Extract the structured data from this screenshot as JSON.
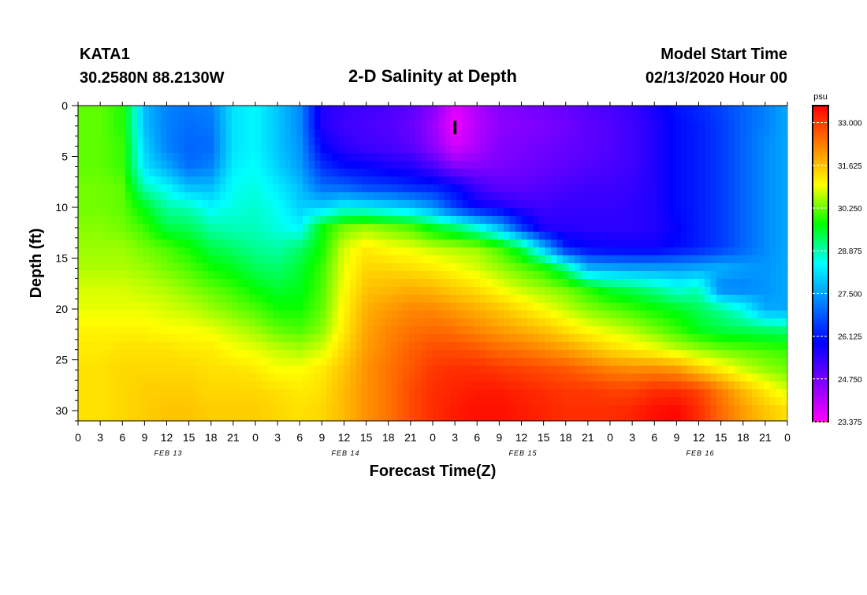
{
  "header": {
    "station": "KATA1",
    "coords": "30.2580N 88.2130W",
    "title": "2-D Salinity at Depth",
    "start_label": "Model Start Time",
    "start_value": "02/13/2020 Hour 00"
  },
  "chart_data": {
    "type": "heatmap",
    "title": "2-D Salinity at Depth",
    "xlabel": "Forecast Time(Z)",
    "ylabel": "Depth (ft)",
    "x_tick_labels": [
      "0",
      "3",
      "6",
      "9",
      "12",
      "15",
      "18",
      "21",
      "0",
      "3",
      "6",
      "9",
      "12",
      "15",
      "18",
      "21",
      "0",
      "3",
      "6",
      "9",
      "12",
      "15",
      "18",
      "21",
      "0",
      "3",
      "6",
      "9",
      "12",
      "15",
      "18",
      "21",
      "0"
    ],
    "day_labels": [
      "FEB 13",
      "FEB 14",
      "FEB 15",
      "FEB 16"
    ],
    "xlim_hours": [
      0,
      96
    ],
    "y_tick_labels": [
      "0",
      "5",
      "10",
      "15",
      "20",
      "25",
      "30"
    ],
    "ylim_ft": [
      0,
      31
    ],
    "y_inverted": true,
    "colorbar": {
      "unit": "psu",
      "range": [
        23.375,
        33.55
      ],
      "tick_labels": [
        "33.000",
        "31.625",
        "30.250",
        "28.875",
        "27.500",
        "26.125",
        "24.750",
        "23.375"
      ],
      "colors": [
        "#ff00ff",
        "#7f00ff",
        "#0000ff",
        "#0080ff",
        "#00ffff",
        "#00ff00",
        "#ffff00",
        "#ff8000",
        "#ff0000"
      ]
    },
    "time_hours": [
      0,
      3,
      6,
      9,
      12,
      15,
      18,
      21,
      24,
      27,
      30,
      33,
      36,
      39,
      42,
      45,
      48,
      51,
      54,
      57,
      60,
      63,
      66,
      69,
      72,
      75,
      78,
      81,
      84,
      87,
      90,
      93,
      96
    ],
    "depths_ft": [
      0,
      2,
      4,
      6,
      8,
      10,
      12,
      14,
      16,
      18,
      20,
      22,
      24,
      26,
      28,
      30
    ],
    "values": [
      [
        30.2,
        30.2,
        29.9,
        27.8,
        27.2,
        27.1,
        27.2,
        28.2,
        28.4,
        27.9,
        27.3,
        25.6,
        25.4,
        25.3,
        25.2,
        25.0,
        24.6,
        23.7,
        24.2,
        24.6,
        24.7,
        24.8,
        24.9,
        25.1,
        25.2,
        25.4,
        25.7,
        26.1,
        26.3,
        26.6,
        26.9,
        27.2,
        27.6
      ],
      [
        30.2,
        30.2,
        29.9,
        27.8,
        27.2,
        27.0,
        27.1,
        28.2,
        28.4,
        27.9,
        27.3,
        25.6,
        25.3,
        25.2,
        25.1,
        24.9,
        24.4,
        23.5,
        24.1,
        24.5,
        24.6,
        24.7,
        24.8,
        25.0,
        25.1,
        25.3,
        25.6,
        26.0,
        26.2,
        26.5,
        26.9,
        27.2,
        27.6
      ],
      [
        30.2,
        30.2,
        30.0,
        28.0,
        27.2,
        26.9,
        27.0,
        28.2,
        28.4,
        27.9,
        27.4,
        25.9,
        25.5,
        25.3,
        25.2,
        25.0,
        24.5,
        23.8,
        24.2,
        24.6,
        24.7,
        24.8,
        24.9,
        25.0,
        25.1,
        25.3,
        25.6,
        26.0,
        26.2,
        26.5,
        26.9,
        27.3,
        27.6
      ],
      [
        30.2,
        30.2,
        30.0,
        28.2,
        27.6,
        27.0,
        27.2,
        28.3,
        28.5,
        28.0,
        27.5,
        26.4,
        26.0,
        25.9,
        25.7,
        25.6,
        25.2,
        24.6,
        24.6,
        24.7,
        24.8,
        24.9,
        25.0,
        25.1,
        25.2,
        25.3,
        25.6,
        26.0,
        26.2,
        26.5,
        26.9,
        27.3,
        27.6
      ],
      [
        30.3,
        30.3,
        30.2,
        28.8,
        28.4,
        27.8,
        27.8,
        28.5,
        28.6,
        28.3,
        27.8,
        27.0,
        26.9,
        26.6,
        26.5,
        26.3,
        26.2,
        25.9,
        25.3,
        25.0,
        25.0,
        25.1,
        25.2,
        25.3,
        25.3,
        25.4,
        25.6,
        26.0,
        26.2,
        26.5,
        26.9,
        27.3,
        27.6
      ],
      [
        30.3,
        30.3,
        30.2,
        29.6,
        28.9,
        28.8,
        28.4,
        28.6,
        28.7,
        28.5,
        28.0,
        28.0,
        28.4,
        28.3,
        28.1,
        27.9,
        27.4,
        26.5,
        25.9,
        25.7,
        25.4,
        25.3,
        25.4,
        25.4,
        25.4,
        25.5,
        25.6,
        26.0,
        26.2,
        26.5,
        26.9,
        27.3,
        27.6
      ],
      [
        30.4,
        30.4,
        30.3,
        30.0,
        29.4,
        29.3,
        28.9,
        28.8,
        28.8,
        28.6,
        28.4,
        29.7,
        30.3,
        30.5,
        30.3,
        30.1,
        29.6,
        29.2,
        28.6,
        27.8,
        26.5,
        25.6,
        25.5,
        25.5,
        25.5,
        25.5,
        25.6,
        25.9,
        26.2,
        26.5,
        26.9,
        27.3,
        27.6
      ],
      [
        30.5,
        30.5,
        30.5,
        30.3,
        30.1,
        29.8,
        29.4,
        29.2,
        29.0,
        28.9,
        29.2,
        29.8,
        30.8,
        31.2,
        31.0,
        30.9,
        30.7,
        30.6,
        30.5,
        30.1,
        29.4,
        27.8,
        26.2,
        25.9,
        25.8,
        25.8,
        25.8,
        26.0,
        26.2,
        26.5,
        26.9,
        27.3,
        27.6
      ],
      [
        30.6,
        30.6,
        30.6,
        30.5,
        30.3,
        30.1,
        29.8,
        29.6,
        29.3,
        29.2,
        29.5,
        30.0,
        30.9,
        31.4,
        31.4,
        31.3,
        31.2,
        31.0,
        30.8,
        30.5,
        30.2,
        29.9,
        29.1,
        27.7,
        27.6,
        27.5,
        27.5,
        27.5,
        27.6,
        27.7,
        27.5,
        27.4,
        27.6
      ],
      [
        30.8,
        30.8,
        30.8,
        30.7,
        30.6,
        30.4,
        30.2,
        30.0,
        29.7,
        29.5,
        29.6,
        30.1,
        31.0,
        31.6,
        31.7,
        31.8,
        31.7,
        31.5,
        31.3,
        31.0,
        30.7,
        30.5,
        30.3,
        29.9,
        29.5,
        29.3,
        29.0,
        28.6,
        28.8,
        27.2,
        27.2,
        27.4,
        27.6
      ],
      [
        30.9,
        30.9,
        30.9,
        30.9,
        30.8,
        30.7,
        30.5,
        30.3,
        30.1,
        29.8,
        29.8,
        30.2,
        31.1,
        31.8,
        32.0,
        32.2,
        32.2,
        32.0,
        31.8,
        31.6,
        31.3,
        31.0,
        30.7,
        30.4,
        30.2,
        30.0,
        29.8,
        29.6,
        29.3,
        29.0,
        28.5,
        27.6,
        27.6
      ],
      [
        31.1,
        31.1,
        31.1,
        31.1,
        31.0,
        31.0,
        30.9,
        30.7,
        30.5,
        30.2,
        30.1,
        30.4,
        31.2,
        31.9,
        32.2,
        32.4,
        32.5,
        32.4,
        32.2,
        32.0,
        31.8,
        31.6,
        31.3,
        31.0,
        30.8,
        30.6,
        30.3,
        30.0,
        29.6,
        29.4,
        29.3,
        29.2,
        29.1
      ],
      [
        31.2,
        31.2,
        31.3,
        31.3,
        31.3,
        31.2,
        31.2,
        31.0,
        30.9,
        30.7,
        30.6,
        30.8,
        31.4,
        32.0,
        32.3,
        32.6,
        32.8,
        32.8,
        32.7,
        32.5,
        32.4,
        32.2,
        32.0,
        31.7,
        31.4,
        31.2,
        31.0,
        30.7,
        30.5,
        30.3,
        30.2,
        30.1,
        30.0
      ],
      [
        31.3,
        31.3,
        31.4,
        31.4,
        31.4,
        31.4,
        31.3,
        31.3,
        31.2,
        31.0,
        31.0,
        31.2,
        31.6,
        32.1,
        32.4,
        32.7,
        33.0,
        33.1,
        33.1,
        33.0,
        32.9,
        32.8,
        32.7,
        32.5,
        32.3,
        32.2,
        32.2,
        32.1,
        31.6,
        31.2,
        30.8,
        30.5,
        30.3
      ],
      [
        31.3,
        31.3,
        31.4,
        31.5,
        31.5,
        31.5,
        31.4,
        31.4,
        31.4,
        31.3,
        31.2,
        31.3,
        31.7,
        32.1,
        32.4,
        32.8,
        33.1,
        33.2,
        33.3,
        33.3,
        33.2,
        33.1,
        33.0,
        33.0,
        32.9,
        32.9,
        33.1,
        33.1,
        32.9,
        32.3,
        31.7,
        31.2,
        30.8
      ],
      [
        31.3,
        31.3,
        31.4,
        31.5,
        31.6,
        31.6,
        31.5,
        31.5,
        31.5,
        31.4,
        31.3,
        31.4,
        31.7,
        32.1,
        32.4,
        32.8,
        33.1,
        33.3,
        33.4,
        33.4,
        33.3,
        33.2,
        33.1,
        33.1,
        33.1,
        33.2,
        33.4,
        33.5,
        33.1,
        32.5,
        32.0,
        31.6,
        31.3
      ]
    ],
    "annotation": "small black marker near hour 51, depth 2 ft"
  }
}
